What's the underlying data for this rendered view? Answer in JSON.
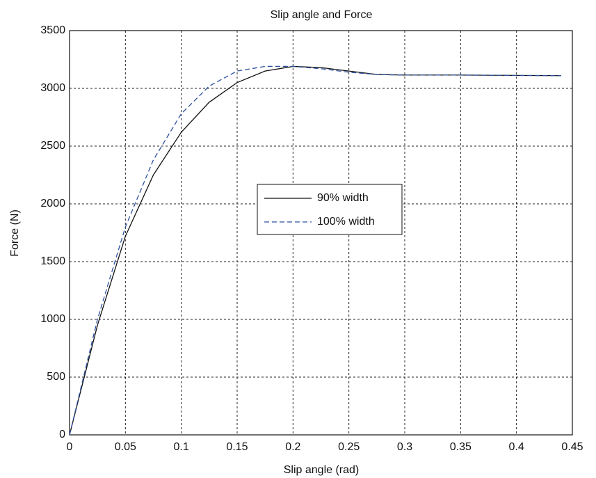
{
  "chart_data": {
    "type": "line",
    "title": "Slip angle and Force",
    "x_label": "Slip angle (rad)",
    "y_label": "Force (N)",
    "x": [
      0,
      0.025,
      0.05,
      0.075,
      0.1,
      0.125,
      0.15,
      0.175,
      0.2,
      0.225,
      0.25,
      0.275,
      0.3,
      0.35,
      0.4,
      0.44
    ],
    "series": [
      {
        "name": "90% width",
        "color": "#111111",
        "dash": false,
        "values": [
          0,
          950,
          1720,
          2250,
          2620,
          2880,
          3050,
          3150,
          3190,
          3180,
          3150,
          3120,
          3115,
          3115,
          3112,
          3110
        ]
      },
      {
        "name": "100% width",
        "color": "#2b4f9e",
        "dash": true,
        "values": [
          0,
          1000,
          1800,
          2380,
          2780,
          3020,
          3150,
          3190,
          3190,
          3170,
          3140,
          3120,
          3115,
          3115,
          3112,
          3110
        ]
      }
    ],
    "xlim": [
      0,
      0.45
    ],
    "xticks": [
      0,
      0.05,
      0.1,
      0.15,
      0.2,
      0.25,
      0.3,
      0.35,
      0.4,
      0.45
    ],
    "ylim": [
      0,
      3500
    ],
    "yticks": [
      0,
      500,
      1000,
      1500,
      2000,
      2500,
      3000,
      3500
    ],
    "grid": true,
    "legend": "center"
  }
}
